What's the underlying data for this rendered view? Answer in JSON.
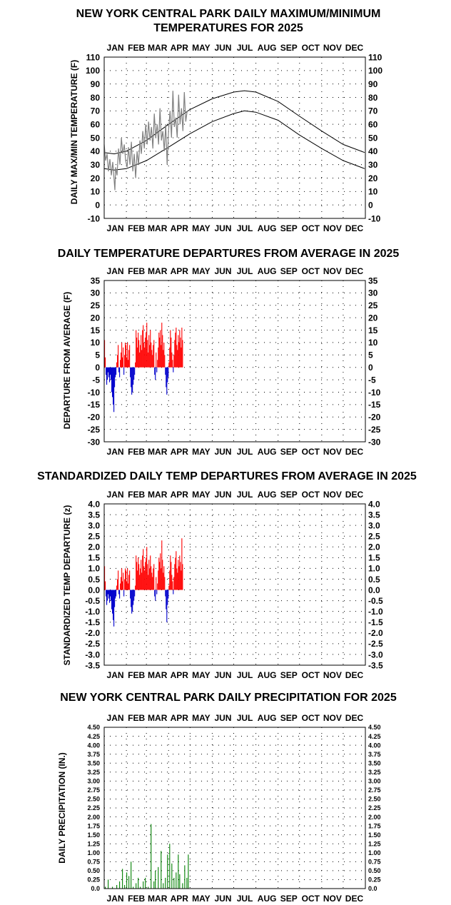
{
  "months": [
    "JAN",
    "FEB",
    "MAR",
    "APR",
    "MAY",
    "JUN",
    "JUL",
    "AUG",
    "SEP",
    "OCT",
    "NOV",
    "DEC"
  ],
  "colors": {
    "normal_line": "#000000",
    "observed_line": "#808080",
    "above": "#ff0000",
    "below": "#0000cc",
    "precip": "#008000",
    "frame": "#000000"
  },
  "chart_data": [
    {
      "type": "line",
      "title_lines": [
        "NEW YORK CENTRAL PARK DAILY MAXIMUM/MINIMUM",
        "TEMPERATURES FOR 2025"
      ],
      "ylabel": "DAILY MAX/MIN TEMPERATURE (F)",
      "ylim": [
        -10,
        110
      ],
      "y_ticks": [
        "-10",
        "0",
        "10",
        "20",
        "30",
        "40",
        "50",
        "60",
        "70",
        "80",
        "90",
        "100",
        "110"
      ],
      "x_unit": "day of year",
      "grid": "dotted",
      "normal_max": [
        [
          1,
          39
        ],
        [
          15,
          38
        ],
        [
          32,
          40
        ],
        [
          60,
          48
        ],
        [
          91,
          60
        ],
        [
          121,
          71
        ],
        [
          152,
          79
        ],
        [
          182,
          84
        ],
        [
          197,
          85
        ],
        [
          213,
          84
        ],
        [
          244,
          77
        ],
        [
          274,
          66
        ],
        [
          305,
          55
        ],
        [
          335,
          45
        ],
        [
          365,
          39
        ]
      ],
      "normal_min": [
        [
          1,
          27
        ],
        [
          15,
          26
        ],
        [
          32,
          27
        ],
        [
          60,
          33
        ],
        [
          91,
          43
        ],
        [
          121,
          53
        ],
        [
          152,
          62
        ],
        [
          182,
          68
        ],
        [
          197,
          70
        ],
        [
          213,
          69
        ],
        [
          244,
          63
        ],
        [
          274,
          52
        ],
        [
          305,
          42
        ],
        [
          335,
          33
        ],
        [
          365,
          27
        ]
      ],
      "observed": [
        [
          1,
          45
        ],
        [
          3,
          33
        ],
        [
          5,
          38
        ],
        [
          7,
          25
        ],
        [
          9,
          34
        ],
        [
          11,
          22
        ],
        [
          13,
          32
        ],
        [
          15,
          18
        ],
        [
          16,
          11
        ],
        [
          17,
          28
        ],
        [
          19,
          22
        ],
        [
          21,
          42
        ],
        [
          23,
          30
        ],
        [
          25,
          50
        ],
        [
          27,
          38
        ],
        [
          29,
          45
        ],
        [
          31,
          33
        ],
        [
          33,
          28
        ],
        [
          35,
          43
        ],
        [
          37,
          30
        ],
        [
          39,
          47
        ],
        [
          41,
          25
        ],
        [
          43,
          38
        ],
        [
          45,
          20
        ],
        [
          47,
          40
        ],
        [
          49,
          30
        ],
        [
          51,
          48
        ],
        [
          53,
          38
        ],
        [
          55,
          55
        ],
        [
          57,
          42
        ],
        [
          59,
          60
        ],
        [
          61,
          45
        ],
        [
          63,
          62
        ],
        [
          65,
          48
        ],
        [
          67,
          58
        ],
        [
          69,
          42
        ],
        [
          71,
          68
        ],
        [
          73,
          50
        ],
        [
          75,
          60
        ],
        [
          77,
          45
        ],
        [
          79,
          72
        ],
        [
          81,
          48
        ],
        [
          83,
          55
        ],
        [
          85,
          40
        ],
        [
          87,
          60
        ],
        [
          89,
          30
        ],
        [
          91,
          55
        ],
        [
          93,
          70
        ],
        [
          95,
          50
        ],
        [
          97,
          85
        ],
        [
          99,
          58
        ],
        [
          101,
          65
        ],
        [
          103,
          50
        ],
        [
          105,
          82
        ],
        [
          107,
          60
        ],
        [
          109,
          72
        ],
        [
          111,
          55
        ],
        [
          113,
          84
        ],
        [
          115,
          62
        ],
        [
          117,
          70
        ]
      ]
    },
    {
      "type": "bar",
      "title": "DAILY TEMPERATURE DEPARTURES FROM AVERAGE IN 2025",
      "ylabel": "DEPARTURE FROM AVERAGE (F)",
      "ylim": [
        -30,
        35
      ],
      "y_ticks": [
        "-30",
        "-25",
        "-20",
        "-15",
        "-10",
        "-5",
        "0",
        "5",
        "10",
        "15",
        "20",
        "25",
        "30",
        "35"
      ],
      "x_unit": "day of year",
      "grid": "dotted",
      "values": [
        11,
        4,
        -3,
        -7,
        -5,
        -2,
        -4,
        -6,
        -3,
        -5,
        -10,
        -12,
        -15,
        -18,
        -8,
        -4,
        -3,
        2,
        5,
        9,
        -2,
        -4,
        3,
        6,
        10,
        4,
        8,
        -3,
        5,
        10,
        9,
        4,
        10,
        3,
        7,
        9,
        -4,
        -8,
        -11,
        -10,
        -7,
        -5,
        -3,
        2,
        15,
        12,
        8,
        14,
        11,
        6,
        9,
        13,
        7,
        15,
        17,
        10,
        8,
        12,
        14,
        18,
        11,
        6,
        13,
        9,
        15,
        10,
        7,
        5,
        9,
        11,
        -3,
        -5,
        6,
        -2,
        3,
        8,
        14,
        12,
        15,
        9,
        18,
        13,
        7,
        10,
        5,
        -3,
        -8,
        -11,
        -6,
        -4,
        2,
        8,
        15,
        12,
        6,
        3,
        -2,
        5,
        11,
        14,
        16,
        9,
        7,
        13,
        10,
        15,
        12,
        8,
        16,
        11
      ],
      "x_start_day": 1
    },
    {
      "type": "bar",
      "title": "STANDARDIZED DAILY TEMP DEPARTURES FROM AVERAGE IN 2025",
      "ylabel": "STANDARDIZED TEMP DEPARTURE (z)",
      "ylim": [
        -3.5,
        4.0
      ],
      "y_ticks": [
        "-3.5",
        "-3.0",
        "-2.5",
        "-2.0",
        "-1.5",
        "-1.0",
        "-0.5",
        "0.0",
        "0.5",
        "1.0",
        "1.5",
        "2.0",
        "2.5",
        "3.0",
        "3.5",
        "4.0"
      ],
      "x_unit": "day of year",
      "grid": "dotted",
      "values": [
        1.1,
        0.4,
        -0.3,
        -0.7,
        -0.5,
        -0.2,
        -0.4,
        -0.6,
        -0.3,
        -0.5,
        -0.9,
        -1.1,
        -1.4,
        -1.7,
        -0.8,
        -0.4,
        -0.3,
        0.2,
        0.5,
        0.9,
        -0.2,
        -0.4,
        0.3,
        0.6,
        1.0,
        0.4,
        0.8,
        -0.3,
        0.5,
        1.0,
        0.9,
        0.4,
        1.0,
        0.3,
        0.7,
        0.9,
        -0.4,
        -0.8,
        -1.1,
        -1.0,
        -0.7,
        -0.5,
        -0.3,
        0.2,
        1.6,
        1.3,
        0.9,
        1.5,
        1.2,
        0.7,
        1.0,
        1.4,
        0.8,
        1.6,
        1.9,
        1.1,
        0.9,
        1.3,
        1.5,
        2.0,
        1.2,
        0.7,
        1.4,
        1.0,
        1.6,
        1.1,
        0.8,
        0.6,
        1.0,
        1.2,
        -0.3,
        -0.5,
        0.6,
        -0.2,
        0.3,
        0.9,
        1.5,
        1.3,
        1.7,
        1.0,
        2.3,
        1.4,
        0.8,
        1.1,
        0.6,
        -0.3,
        -0.9,
        -1.5,
        -0.7,
        -0.4,
        0.2,
        0.9,
        1.6,
        1.3,
        0.7,
        0.4,
        -0.2,
        0.6,
        1.2,
        1.5,
        1.8,
        1.0,
        0.8,
        1.4,
        1.1,
        1.6,
        1.3,
        0.9,
        2.4,
        1.2
      ],
      "x_start_day": 1
    },
    {
      "type": "bar",
      "title": "NEW YORK CENTRAL PARK DAILY PRECIPITATION FOR 2025",
      "ylabel": "DAILY PRECIPITATION (IN.)",
      "ylim": [
        0,
        4.5
      ],
      "y_ticks": [
        "0.0",
        "0.25",
        "0.50",
        "0.75",
        "1.00",
        "1.25",
        "1.50",
        "1.75",
        "2.00",
        "2.25",
        "2.50",
        "2.75",
        "3.00",
        "3.25",
        "3.50",
        "3.75",
        "4.00",
        "4.25",
        "4.50"
      ],
      "x_unit": "day of year",
      "grid": "dotted",
      "days": [
        2,
        6,
        12,
        18,
        22,
        26,
        29,
        32,
        35,
        38,
        41,
        45,
        48,
        51,
        55,
        58,
        62,
        66,
        70,
        72,
        76,
        80,
        83,
        86,
        89,
        92,
        95,
        98,
        101,
        104,
        106,
        110,
        113,
        116,
        118
      ],
      "values": [
        0.05,
        0.25,
        0.05,
        0.1,
        0.2,
        0.55,
        0.1,
        0.45,
        0.35,
        0.75,
        0.05,
        0.15,
        0.3,
        0.05,
        0.2,
        0.3,
        0.05,
        1.8,
        0.2,
        0.5,
        0.6,
        1.05,
        0.15,
        0.3,
        0.95,
        1.25,
        0.7,
        0.3,
        0.45,
        0.95,
        0.4,
        0.15,
        0.65,
        0.3,
        0.95
      ]
    }
  ]
}
